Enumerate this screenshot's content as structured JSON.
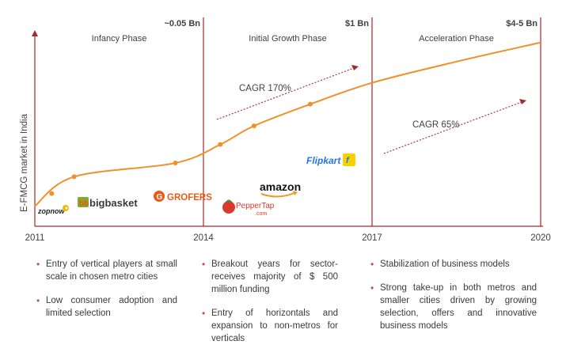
{
  "chart_data": {
    "type": "line",
    "ylabel": "E-FMCG market in India",
    "xlabel": "",
    "x_ticks": [
      "2011",
      "2014",
      "2017",
      "2020"
    ],
    "phases": [
      {
        "name": "Infancy Phase",
        "from": 2011,
        "to": 2014
      },
      {
        "name": "Initial Growth Phase",
        "from": 2014,
        "to": 2017
      },
      {
        "name": "Acceleration Phase",
        "from": 2017,
        "to": 2020
      }
    ],
    "milestones": [
      {
        "year": 2014,
        "label": "~0.05 Bn"
      },
      {
        "year": 2017,
        "label": "$1 Bn"
      },
      {
        "year": 2020,
        "label": "$4-5 Bn"
      }
    ],
    "cagr_labels": [
      "CAGR 170%",
      "CAGR 65%"
    ],
    "series": [
      {
        "values": [
          {
            "x": 2011.0,
            "y": 0.01
          },
          {
            "x": 2011.7,
            "y": 0.03
          },
          {
            "x": 2013.5,
            "y": 0.05
          },
          {
            "x": 2014.3,
            "y": 0.1
          },
          {
            "x": 2014.9,
            "y": 0.2
          },
          {
            "x": 2015.9,
            "y": 0.45
          },
          {
            "x": 2017.0,
            "y": 1.0
          },
          {
            "x": 2018.5,
            "y": 2.2
          },
          {
            "x": 2020.0,
            "y": 4.5
          }
        ]
      }
    ],
    "brands": [
      {
        "name": "zopnow",
        "year": 2011.3
      },
      {
        "name": "bigbasket",
        "year": 2011.7
      },
      {
        "name": "GROFERS",
        "year": 2013.5
      },
      {
        "name": "PepperTap",
        "year": 2014.3
      },
      {
        "name": "amazon",
        "year": 2014.9
      },
      {
        "name": "Flipkart",
        "year": 2015.9
      }
    ],
    "brand_extra": {
      "peppertap_domain": ".com"
    },
    "grid": false,
    "colors": {
      "line": "#f0902a",
      "axis": "#a52a2a",
      "arrow": "#a52a2a"
    }
  },
  "bullets": [
    [
      "Entry of vertical players at small scale in chosen metro cities",
      "Low consumer adoption and limited selection"
    ],
    [
      "Breakout years for sector- receives majority of $ 500 million funding",
      "Entry of horizontals and expansion to non-metros for verticals"
    ],
    [
      "Stabilization of business models",
      "Strong take-up in both metros and smaller cities driven by growing selection, offers and innovative business models"
    ]
  ]
}
